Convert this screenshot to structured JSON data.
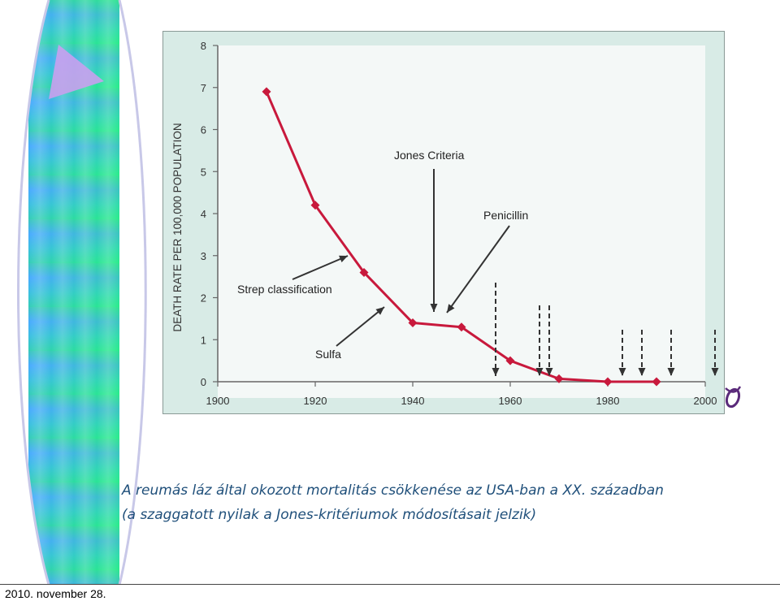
{
  "footer": {
    "date": "2010. november 28."
  },
  "caption": {
    "line1": "A reumás láz által okozott mortalitás csökkenése az USA-ban a XX. században",
    "line2": "(a szaggatott nyilak a Jones-kritériumok módosításait jelzik)"
  },
  "chart_data": {
    "type": "line",
    "ylabel": "DEATH RATE PER 100,000 POPULATION",
    "xlabel": "",
    "xlim": [
      1900,
      2000
    ],
    "ylim": [
      0,
      8
    ],
    "x_ticks": [
      "1900",
      "1920",
      "1940",
      "1960",
      "1980",
      "2000"
    ],
    "y_ticks": [
      "0",
      "1",
      "2",
      "3",
      "4",
      "5",
      "6",
      "7",
      "8"
    ],
    "grid": false,
    "series": [
      {
        "x": [
          1910,
          1920,
          1930,
          1940,
          1950,
          1960,
          1970,
          1980,
          1990
        ],
        "y": [
          6.9,
          4.2,
          2.6,
          1.4,
          1.3,
          0.5,
          0.07,
          0.0,
          0.0
        ],
        "color": "#c8193c"
      }
    ],
    "annotations": [
      {
        "text": "Jones Criteria"
      },
      {
        "text": "Penicillin"
      },
      {
        "text": "Strep classification"
      },
      {
        "text": "Sulfa"
      }
    ],
    "dashed_arrow_years": [
      1957,
      1966,
      1968,
      1983,
      1987,
      1993,
      2002
    ]
  },
  "colors": {
    "line": "#c8193c",
    "caption": "#1f4f7a",
    "chart_bg": "#d8ebe6"
  },
  "icons": {
    "corner_logo": "purple-flourish-icon"
  }
}
